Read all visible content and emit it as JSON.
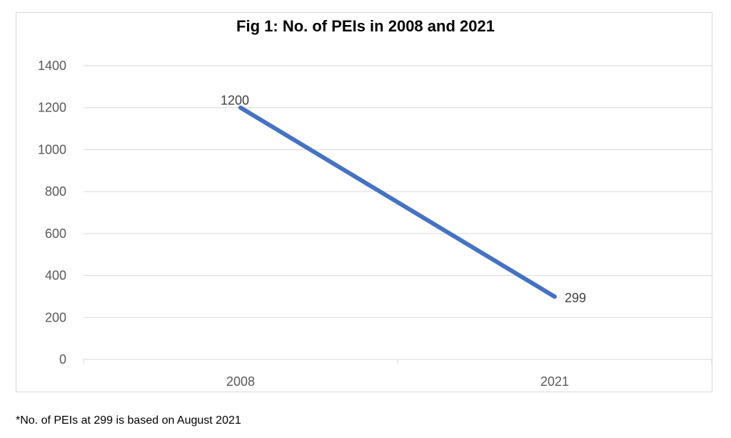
{
  "chart_data": {
    "type": "line",
    "title": "Fig 1: No. of PEIs in 2008 and 2021",
    "categories": [
      "2008",
      "2021"
    ],
    "series": [
      {
        "values": [
          1200,
          299
        ],
        "data_labels": [
          "1200",
          "299"
        ],
        "color": "#4472c4"
      }
    ],
    "ylim": [
      0,
      1400
    ],
    "yticks": [
      0,
      200,
      400,
      600,
      800,
      1000,
      1200,
      1400
    ],
    "ytick_labels": [
      "0",
      "200",
      "400",
      "600",
      "800",
      "1000",
      "1200",
      "1400"
    ],
    "grid": true,
    "legend": "none",
    "xlabel": "",
    "ylabel": ""
  },
  "footnote": "*No. of PEIs at 299 is based on August 2021",
  "colors": {
    "line": "#4472c4",
    "grid": "#d9d9d9",
    "axis_text": "#595959",
    "frame": "#d9d9d9"
  }
}
